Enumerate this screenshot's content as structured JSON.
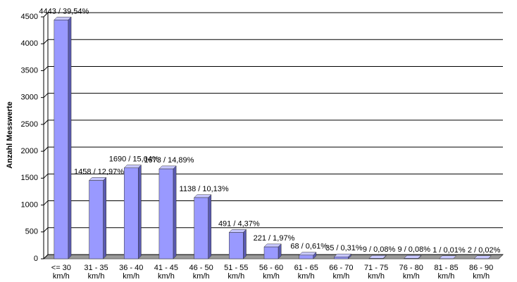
{
  "chart_data": {
    "type": "bar",
    "y_label": "Anzahl Messwerte",
    "categories": [
      "<= 30 km/h",
      "31 - 35 km/h",
      "36 - 40 km/h",
      "41 - 45 km/h",
      "46 - 50 km/h",
      "51 - 55 km/h",
      "56 - 60 km/h",
      "61 - 65 km/h",
      "66 - 70 km/h",
      "71 - 75 km/h",
      "76 - 80 km/h",
      "81 - 85 km/h",
      "86 - 90 km/h"
    ],
    "values": [
      4443,
      1458,
      1690,
      1673,
      1138,
      491,
      221,
      68,
      35,
      9,
      9,
      1,
      2
    ],
    "value_labels": [
      "4443 / 39,54%",
      "1458 / 12,97%",
      "1690 / 15,04%",
      "1673 / 14,89%",
      "1138 / 10,13%",
      "491 / 4,37%",
      "221 / 1,97%",
      "68 / 0,61%",
      "35 / 0,31%",
      "9 / 0,08%",
      "9 / 0,08%",
      "1 / 0,01%",
      "2 / 0,02%"
    ],
    "color": "#9999ff",
    "ylim": [
      0,
      4500
    ],
    "yticks": [
      0,
      500,
      1000,
      1500,
      2000,
      2500,
      3000,
      3500,
      4000,
      4500
    ],
    "grid": true
  }
}
